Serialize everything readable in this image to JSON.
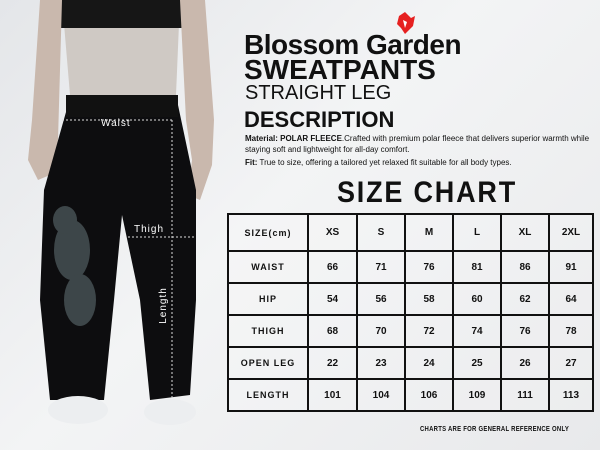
{
  "header": {
    "brand_logo": "red-bird-logo",
    "brand_color": "#e62020",
    "title_line1": "Blossom Garden",
    "title_line2": "SWEATPANTS",
    "subtitle": "STRAIGHT LEG"
  },
  "description": {
    "heading": "DESCRIPTION",
    "material_label": "Material: POLAR FLEECE",
    "material_text": ".Crafted with premium polar fleece that delivers superior warmth while staying soft and lightweight for all-day comfort.",
    "fit_label": "Fit:",
    "fit_text": " True to size, offering a tailored yet relaxed fit suitable for all body types."
  },
  "measure_labels": {
    "waist": "Waist",
    "thigh": "Thigh",
    "length": "Length"
  },
  "size_chart": {
    "heading": "SIZE CHART",
    "columns": [
      "SIZE(cm)",
      "XS",
      "S",
      "M",
      "L",
      "XL",
      "2XL"
    ],
    "rows": [
      {
        "label": "WAIST",
        "values": [
          "66",
          "71",
          "76",
          "81",
          "86",
          "91"
        ]
      },
      {
        "label": "HIP",
        "values": [
          "54",
          "56",
          "58",
          "60",
          "62",
          "64"
        ]
      },
      {
        "label": "THIGH",
        "values": [
          "68",
          "70",
          "72",
          "74",
          "76",
          "78"
        ]
      },
      {
        "label": "OPEN LEG",
        "values": [
          "22",
          "23",
          "24",
          "25",
          "26",
          "27"
        ]
      },
      {
        "label": "LENGTH",
        "values": [
          "101",
          "104",
          "106",
          "109",
          "111",
          "113"
        ]
      }
    ],
    "note": "CHARTS ARE FOR GENERAL REFERENCE ONLY"
  }
}
